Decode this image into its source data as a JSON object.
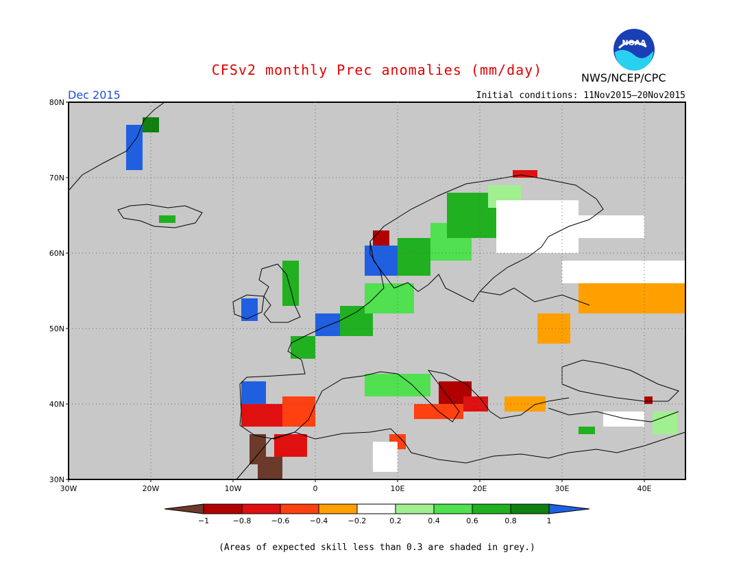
{
  "header": {
    "title": "CFSv2 monthly Prec anomalies (mm/day)",
    "agency": "NWS/NCEP/CPC",
    "logo_text": "NOAA",
    "month": "Dec 2015",
    "initial_conditions": "Initial conditions: 11Nov2015–20Nov2015"
  },
  "map": {
    "lon_range": [
      -30,
      45
    ],
    "lat_range": [
      30,
      80
    ],
    "lat_labels": [
      "30N",
      "40N",
      "50N",
      "60N",
      "70N",
      "80N"
    ],
    "lon_labels": [
      "30W",
      "20W",
      "10W",
      "0",
      "10E",
      "20E",
      "30E",
      "40E"
    ],
    "background_color": "#c8c8c8"
  },
  "colorbar": {
    "tick_labels": [
      "−1",
      "−0.8",
      "−0.6",
      "−0.4",
      "−0.2",
      "0.2",
      "0.4",
      "0.6",
      "0.8",
      "1"
    ],
    "colors": [
      "#6b3a2a",
      "#b00000",
      "#e01010",
      "#ff4010",
      "#ffa000",
      "#ffffff",
      "#a0f090",
      "#50e050",
      "#20b020",
      "#108010",
      "#2060e0"
    ]
  },
  "footnote": "(Areas of expected skill less than 0.3 are shaded in grey.)"
}
